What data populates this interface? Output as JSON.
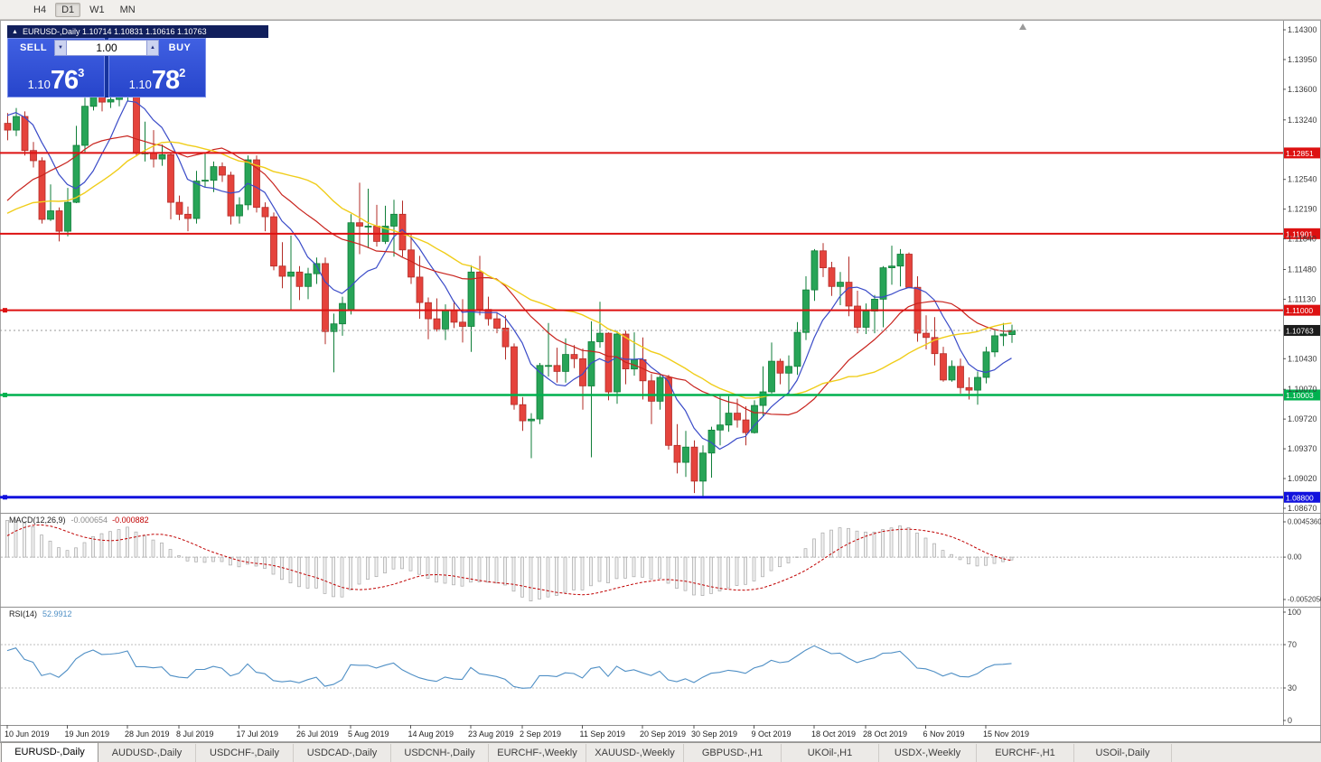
{
  "toolbar": {
    "timeframes": [
      "H4",
      "D1",
      "W1",
      "MN"
    ],
    "active": "D1"
  },
  "chart_header": {
    "collapse_icon": "▲",
    "title": "EURUSD-,Daily 1.10714 1.10831 1.10616 1.10763"
  },
  "trade_panel": {
    "sell_label": "SELL",
    "buy_label": "BUY",
    "volume": "1.00",
    "spinner_down": "▼",
    "spinner_up": "▲",
    "sell_price": {
      "prefix": "1.10",
      "big": "76",
      "sup": "3"
    },
    "buy_price": {
      "prefix": "1.10",
      "big": "78",
      "sup": "2"
    }
  },
  "indicators": {
    "macd": {
      "label": "MACD(12,26,9)",
      "value_main": "-0.000654",
      "value_signal": "-0.000882"
    },
    "rsi": {
      "label": "RSI(14)",
      "value": "52.9912"
    }
  },
  "tabs": {
    "active": 0,
    "items": [
      "EURUSD-,Daily",
      "AUDUSD-,Daily",
      "USDCHF-,Daily",
      "USDCAD-,Daily",
      "USDCNH-,Daily",
      "EURCHF-,Weekly",
      "XAUUSD-,Weekly",
      "GBPUSD-,H1",
      "UKOil-,H1",
      "USDX-,Weekly",
      "EURCHF-,H1",
      "USOil-,Daily"
    ]
  },
  "chart_data": {
    "type": "candlestick",
    "symbol": "EURUSD-",
    "timeframe": "Daily",
    "ohlc": {
      "open": "1.10714",
      "high": "1.10831",
      "low": "1.10616",
      "close": "1.10763"
    },
    "price_axis": {
      "max": 1.143,
      "min": 1.0867,
      "ticks": [
        "1.14300",
        "1.13950",
        "1.13600",
        "1.13240",
        "1.12540",
        "1.12190",
        "1.11840",
        "1.11480",
        "1.11130",
        "1.10430",
        "1.10070",
        "1.09720",
        "1.09370",
        "1.09020",
        "1.08670"
      ]
    },
    "x_labels": [
      {
        "i": 0,
        "t": "10 Jun 2019"
      },
      {
        "i": 7,
        "t": "19 Jun 2019"
      },
      {
        "i": 14,
        "t": "28 Jun 2019"
      },
      {
        "i": 20,
        "t": "8 Jul 2019"
      },
      {
        "i": 27,
        "t": "17 Jul 2019"
      },
      {
        "i": 34,
        "t": "26 Jul 2019"
      },
      {
        "i": 40,
        "t": "5 Aug 2019"
      },
      {
        "i": 47,
        "t": "14 Aug 2019"
      },
      {
        "i": 54,
        "t": "23 Aug 2019"
      },
      {
        "i": 60,
        "t": "2 Sep 2019"
      },
      {
        "i": 67,
        "t": "11 Sep 2019"
      },
      {
        "i": 74,
        "t": "20 Sep 2019"
      },
      {
        "i": 80,
        "t": "30 Sep 2019"
      },
      {
        "i": 87,
        "t": "9 Oct 2019"
      },
      {
        "i": 94,
        "t": "18 Oct 2019"
      },
      {
        "i": 100,
        "t": "28 Oct 2019"
      },
      {
        "i": 107,
        "t": "6 Nov 2019"
      },
      {
        "i": 114,
        "t": "15 Nov 2019"
      }
    ],
    "hlines": [
      {
        "price": 1.12851,
        "label": "1.12851",
        "color": "#dd1111",
        "width": 2,
        "handle": false
      },
      {
        "price": 1.11901,
        "label": "1.11901",
        "color": "#dd1111",
        "width": 2,
        "handle": false
      },
      {
        "price": 1.11,
        "label": "1.11000",
        "color": "#dd1111",
        "width": 2,
        "handle": true
      },
      {
        "price": 1.10003,
        "label": "1.10003",
        "color": "#00b14f",
        "width": 2.5,
        "handle": true
      },
      {
        "price": 1.088,
        "label": "1.08800",
        "color": "#1212dd",
        "width": 3,
        "handle": true
      }
    ],
    "current_price": {
      "value": 1.10763,
      "label": "1.10763",
      "line_color": "#9a9a9a",
      "box_color": "#1c1c1c"
    },
    "candle_colors": {
      "up_fill": "#27a457",
      "up_stroke": "#0f7e38",
      "down_fill": "#e5433c",
      "down_stroke": "#b32c27"
    },
    "moving_averages": [
      {
        "period": 7,
        "color": "#3a4bc8",
        "width": 1.2
      },
      {
        "period": 18,
        "color": "#c8231d",
        "width": 1.2
      },
      {
        "period": 28,
        "color": "#f0cd1a",
        "width": 1.4
      }
    ],
    "macd_panel": {
      "fast": 12,
      "slow": 26,
      "signal": 9,
      "range": [
        -0.005205,
        0.004536
      ],
      "axis_labels": [
        "0.0045360",
        "0.00",
        "-0.0052050"
      ],
      "hist_fill": "#f2f2f2",
      "hist_stroke": "#a8a8a8",
      "signal_color": "#c00000"
    },
    "rsi_panel": {
      "period": 14,
      "levels": [
        70,
        30
      ],
      "axis_labels": [
        "100",
        "70",
        "30",
        "0"
      ],
      "color": "#4f8fc5"
    },
    "seed_closes": [
      1.1216,
      1.122,
      1.1205,
      1.119,
      1.118,
      1.1172,
      1.118,
      1.1192,
      1.12,
      1.1208,
      1.1195,
      1.1185,
      1.117,
      1.1158,
      1.115,
      1.1138,
      1.1125,
      1.1115,
      1.1107,
      1.113,
      1.1165,
      1.1205,
      1.1245,
      1.128,
      1.1305,
      1.1325,
      1.134,
      1.1348,
      1.134,
      1.1335
    ],
    "candles": [
      [
        1.132,
        1.1332,
        1.13,
        1.1312
      ],
      [
        1.1312,
        1.1338,
        1.1305,
        1.1328
      ],
      [
        1.1328,
        1.1334,
        1.1282,
        1.1288
      ],
      [
        1.1288,
        1.1298,
        1.1268,
        1.1276
      ],
      [
        1.1276,
        1.128,
        1.1202,
        1.1207
      ],
      [
        1.1207,
        1.1248,
        1.1205,
        1.1217
      ],
      [
        1.1217,
        1.1221,
        1.1181,
        1.1193
      ],
      [
        1.1193,
        1.1244,
        1.1187,
        1.1227
      ],
      [
        1.1227,
        1.1317,
        1.1226,
        1.1294
      ],
      [
        1.1294,
        1.135,
        1.1285,
        1.134
      ],
      [
        1.134,
        1.1372,
        1.1335,
        1.1368
      ],
      [
        1.1368,
        1.137,
        1.1334,
        1.1345
      ],
      [
        1.1345,
        1.1361,
        1.1338,
        1.1348
      ],
      [
        1.1348,
        1.1368,
        1.134,
        1.1355
      ],
      [
        1.1355,
        1.1375,
        1.1346,
        1.1373
      ],
      [
        1.1365,
        1.1368,
        1.1281,
        1.1285
      ],
      [
        1.1285,
        1.1322,
        1.1275,
        1.1285
      ],
      [
        1.1285,
        1.1312,
        1.1268,
        1.1278
      ],
      [
        1.1278,
        1.1295,
        1.127,
        1.1283
      ],
      [
        1.1283,
        1.1286,
        1.1207,
        1.1227
      ],
      [
        1.1227,
        1.1235,
        1.1206,
        1.1213
      ],
      [
        1.1213,
        1.1222,
        1.1193,
        1.1208
      ],
      [
        1.1208,
        1.1264,
        1.1202,
        1.1252
      ],
      [
        1.1252,
        1.1285,
        1.1245,
        1.1253
      ],
      [
        1.1253,
        1.1275,
        1.1239,
        1.1269
      ],
      [
        1.1269,
        1.1274,
        1.1251,
        1.1259
      ],
      [
        1.1259,
        1.1263,
        1.1201,
        1.1211
      ],
      [
        1.1211,
        1.1233,
        1.1202,
        1.1224
      ],
      [
        1.1224,
        1.1282,
        1.1218,
        1.1277
      ],
      [
        1.1277,
        1.1282,
        1.1215,
        1.1221
      ],
      [
        1.1221,
        1.1227,
        1.1193,
        1.121
      ],
      [
        1.121,
        1.1215,
        1.1147,
        1.1152
      ],
      [
        1.1152,
        1.118,
        1.1126,
        1.114
      ],
      [
        1.114,
        1.1188,
        1.1101,
        1.1145
      ],
      [
        1.1145,
        1.1152,
        1.1112,
        1.1128
      ],
      [
        1.1128,
        1.115,
        1.1113,
        1.1143
      ],
      [
        1.1143,
        1.1162,
        1.1131,
        1.1155
      ],
      [
        1.1155,
        1.1162,
        1.106,
        1.1075
      ],
      [
        1.1075,
        1.1096,
        1.1027,
        1.1084
      ],
      [
        1.1084,
        1.1116,
        1.107,
        1.1108
      ],
      [
        1.11,
        1.1213,
        1.1095,
        1.1203
      ],
      [
        1.1203,
        1.125,
        1.1166,
        1.1199
      ],
      [
        1.1199,
        1.1243,
        1.1173,
        1.1199
      ],
      [
        1.1199,
        1.1224,
        1.1175,
        1.1181
      ],
      [
        1.1181,
        1.1223,
        1.1178,
        1.1199
      ],
      [
        1.1199,
        1.123,
        1.1163,
        1.1213
      ],
      [
        1.1213,
        1.1229,
        1.1163,
        1.1171
      ],
      [
        1.1171,
        1.119,
        1.1131,
        1.1139
      ],
      [
        1.1139,
        1.1164,
        1.109,
        1.1109
      ],
      [
        1.1109,
        1.1115,
        1.1066,
        1.109
      ],
      [
        1.109,
        1.1114,
        1.1075,
        1.1078
      ],
      [
        1.1078,
        1.1107,
        1.1065,
        1.11
      ],
      [
        1.11,
        1.1111,
        1.1079,
        1.1086
      ],
      [
        1.1086,
        1.1113,
        1.1062,
        1.1081
      ],
      [
        1.1081,
        1.1153,
        1.1051,
        1.1145
      ],
      [
        1.1145,
        1.1164,
        1.1094,
        1.1101
      ],
      [
        1.1101,
        1.1116,
        1.1082,
        1.109
      ],
      [
        1.109,
        1.1098,
        1.1073,
        1.1079
      ],
      [
        1.1079,
        1.1094,
        1.1042,
        1.1057
      ],
      [
        1.1057,
        1.1061,
        1.0983,
        1.0989
      ],
      [
        1.0989,
        1.0998,
        1.0958,
        1.097
      ],
      [
        1.097,
        1.0979,
        1.0926,
        1.0972
      ],
      [
        1.0972,
        1.1038,
        1.0966,
        1.1035
      ],
      [
        1.1035,
        1.1085,
        1.1022,
        1.1035
      ],
      [
        1.1035,
        1.1056,
        1.1015,
        1.1028
      ],
      [
        1.1028,
        1.1067,
        1.1015,
        1.1048
      ],
      [
        1.1048,
        1.1059,
        1.1032,
        1.1043
      ],
      [
        1.1043,
        1.1055,
        1.0983,
        1.1011
      ],
      [
        1.1011,
        1.1087,
        1.0927,
        1.1063
      ],
      [
        1.1063,
        1.111,
        1.1056,
        1.1073
      ],
      [
        1.1073,
        1.1074,
        1.0994,
        1.1004
      ],
      [
        1.1004,
        1.1076,
        1.099,
        1.1072
      ],
      [
        1.1072,
        1.1076,
        1.1013,
        1.1031
      ],
      [
        1.1031,
        1.1074,
        1.1023,
        1.1042
      ],
      [
        1.1042,
        1.1068,
        1.0995,
        1.1017
      ],
      [
        1.1017,
        1.1025,
        1.0966,
        1.0993
      ],
      [
        1.0993,
        1.1024,
        1.0983,
        1.1021
      ],
      [
        1.1021,
        1.1024,
        1.0936,
        1.0941
      ],
      [
        1.0941,
        1.0966,
        1.0908,
        1.0921
      ],
      [
        1.0921,
        1.0958,
        1.0904,
        1.0939
      ],
      [
        1.0939,
        1.0947,
        1.0885,
        1.0899
      ],
      [
        1.0899,
        1.0941,
        1.0879,
        1.0932
      ],
      [
        1.0932,
        1.0963,
        1.0903,
        1.0959
      ],
      [
        1.0959,
        1.0999,
        1.0941,
        1.0965
      ],
      [
        1.0965,
        1.0999,
        1.0957,
        1.0979
      ],
      [
        1.0979,
        1.0996,
        1.0962,
        1.0971
      ],
      [
        1.0971,
        1.0987,
        1.0941,
        1.0956
      ],
      [
        1.0956,
        1.0994,
        1.0955,
        1.0988
      ],
      [
        1.0988,
        1.1034,
        1.0976,
        1.1004
      ],
      [
        1.1004,
        1.1062,
        1.1002,
        1.104
      ],
      [
        1.104,
        1.1043,
        1.1013,
        1.1026
      ],
      [
        1.1026,
        1.1047,
        1.1001,
        1.1034
      ],
      [
        1.1034,
        1.1086,
        1.1024,
        1.1074
      ],
      [
        1.1074,
        1.114,
        1.1065,
        1.1124
      ],
      [
        1.1124,
        1.1172,
        1.1111,
        1.117
      ],
      [
        1.117,
        1.1179,
        1.1139,
        1.115
      ],
      [
        1.115,
        1.1157,
        1.1117,
        1.1128
      ],
      [
        1.1128,
        1.1145,
        1.1106,
        1.1133
      ],
      [
        1.1133,
        1.1163,
        1.1093,
        1.1105
      ],
      [
        1.1105,
        1.1123,
        1.1073,
        1.108
      ],
      [
        1.108,
        1.1108,
        1.1072,
        1.1099
      ],
      [
        1.1099,
        1.1118,
        1.1073,
        1.1113
      ],
      [
        1.1113,
        1.1152,
        1.108,
        1.115
      ],
      [
        1.115,
        1.1176,
        1.113,
        1.1152
      ],
      [
        1.1152,
        1.1172,
        1.1128,
        1.1166
      ],
      [
        1.1166,
        1.1168,
        1.1126,
        1.1127
      ],
      [
        1.1127,
        1.114,
        1.1063,
        1.1073
      ],
      [
        1.1073,
        1.1094,
        1.1054,
        1.1068
      ],
      [
        1.1068,
        1.1092,
        1.1035,
        1.1049
      ],
      [
        1.1049,
        1.1057,
        1.1016,
        1.1018
      ],
      [
        1.1018,
        1.1041,
        1.1016,
        1.1034
      ],
      [
        1.1034,
        1.1043,
        1.1002,
        1.1009
      ],
      [
        1.1009,
        1.1021,
        1.0995,
        1.1006
      ],
      [
        1.1006,
        1.1028,
        1.0989,
        1.1021
      ],
      [
        1.1021,
        1.1057,
        1.1014,
        1.1051
      ],
      [
        1.1051,
        1.1076,
        1.1045,
        1.107
      ],
      [
        1.107,
        1.1085,
        1.1058,
        1.1072
      ],
      [
        1.10714,
        1.10831,
        1.10616,
        1.10763
      ]
    ]
  }
}
